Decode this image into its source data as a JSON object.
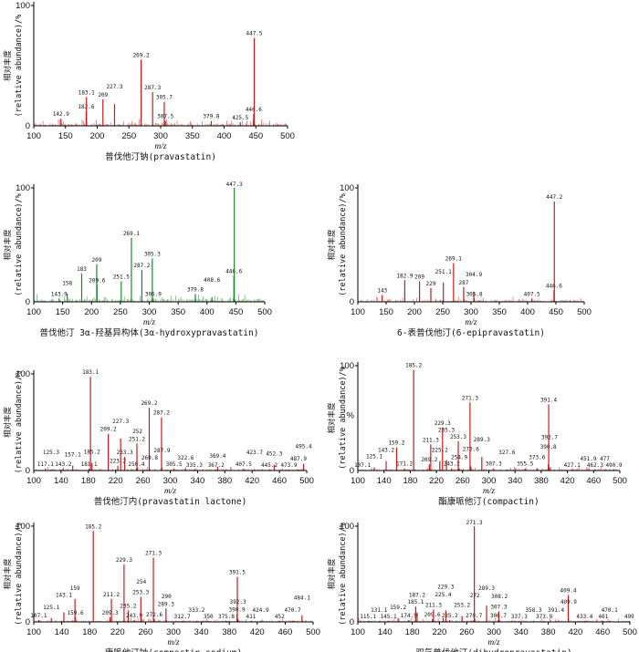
{
  "figure": {
    "y_axis_label_cn": "相对丰度",
    "y_axis_label_en": "(relative abundance)/%",
    "x_axis_label": "m/z",
    "y_max_label": "100",
    "y_zero_label": "0",
    "colors": {
      "red": "#d01818",
      "green": "#1a8a2a",
      "axis": "#000000"
    }
  },
  "chart_data": [
    {
      "type": "bar",
      "id": "pravastatin",
      "color": "red",
      "title": "普伐他汀钠(pravastatin)",
      "xlim": [
        100,
        500
      ],
      "xticks": [
        100,
        150,
        200,
        250,
        300,
        350,
        400,
        450,
        500
      ],
      "ylim": [
        0,
        100
      ],
      "ymax_label": "100",
      "ytick_extra": null,
      "noise": 0.5,
      "peaks": [
        {
          "mz": 142.9,
          "i": 6,
          "label": "142.9"
        },
        {
          "mz": 182.6,
          "i": 12,
          "label": "182.6"
        },
        {
          "mz": 183.1,
          "i": 24,
          "label": "183.1"
        },
        {
          "mz": 209,
          "i": 22,
          "label": "209"
        },
        {
          "mz": 227.3,
          "i": 18,
          "label": "227.3"
        },
        {
          "mz": 269.2,
          "i": 55,
          "label": "269.2"
        },
        {
          "mz": 287.3,
          "i": 28,
          "label": "287.3"
        },
        {
          "mz": 305.7,
          "i": 20,
          "label": "305.7"
        },
        {
          "mz": 307.5,
          "i": 4,
          "label": "307.5"
        },
        {
          "mz": 379.8,
          "i": 4,
          "label": "379.8"
        },
        {
          "mz": 425.5,
          "i": 3,
          "label": "425.5"
        },
        {
          "mz": 446.6,
          "i": 10,
          "label": "446.6"
        },
        {
          "mz": 447.5,
          "i": 73,
          "label": "447.5"
        }
      ]
    },
    {
      "type": "bar",
      "id": "hydroxy",
      "color": "green",
      "title": "普伐他汀 3α-羟基异构体(3α-hydroxypravastatin)",
      "xlim": [
        100,
        500
      ],
      "xticks": [
        100,
        150,
        200,
        250,
        300,
        350,
        400,
        450,
        500
      ],
      "ylim": [
        0,
        100
      ],
      "ymax_label": "100",
      "ytick_extra": null,
      "noise": 0.6,
      "peaks": [
        {
          "mz": 143.9,
          "i": 3,
          "label": "143.9"
        },
        {
          "mz": 158,
          "i": 7,
          "label": "158"
        },
        {
          "mz": 183,
          "i": 25,
          "label": "183"
        },
        {
          "mz": 209,
          "i": 33,
          "label": "209"
        },
        {
          "mz": 209.6,
          "i": 15,
          "label": "209.6"
        },
        {
          "mz": 251.5,
          "i": 18,
          "label": "251.5"
        },
        {
          "mz": 269.1,
          "i": 56,
          "label": "269.1"
        },
        {
          "mz": 287.2,
          "i": 28,
          "label": "287.2"
        },
        {
          "mz": 305.3,
          "i": 38,
          "label": "305.3"
        },
        {
          "mz": 306.9,
          "i": 3,
          "label": "306.9"
        },
        {
          "mz": 379.8,
          "i": 7,
          "label": "379.8"
        },
        {
          "mz": 408.6,
          "i": 4,
          "label": "408.6"
        },
        {
          "mz": 446.6,
          "i": 23,
          "label": "446.6"
        },
        {
          "mz": 447.3,
          "i": 100,
          "label": "447.3"
        }
      ]
    },
    {
      "type": "bar",
      "id": "epi",
      "color": "red",
      "title": "6-表普伐他汀(6-epipravastatin)",
      "xlim": [
        100,
        500
      ],
      "xticks": [
        100,
        150,
        200,
        250,
        300,
        350,
        400,
        450,
        500
      ],
      "ylim": [
        0,
        100
      ],
      "ymax_label": "100",
      "ytick_extra": null,
      "noise": 0.4,
      "peaks": [
        {
          "mz": 143,
          "i": 6,
          "label": "143"
        },
        {
          "mz": 182.9,
          "i": 19,
          "label": "182.9"
        },
        {
          "mz": 209,
          "i": 18,
          "label": "209"
        },
        {
          "mz": 229,
          "i": 12,
          "label": "229"
        },
        {
          "mz": 251.1,
          "i": 17,
          "label": "251.1"
        },
        {
          "mz": 269.1,
          "i": 34,
          "label": "269.1"
        },
        {
          "mz": 287,
          "i": 13,
          "label": "287"
        },
        {
          "mz": 304.9,
          "i": 9,
          "label": "304.9"
        },
        {
          "mz": 305.8,
          "i": 3,
          "label": "305.8"
        },
        {
          "mz": 407.5,
          "i": 3,
          "label": "407.5"
        },
        {
          "mz": 446.6,
          "i": 10,
          "label": "446.6"
        },
        {
          "mz": 447.2,
          "i": 88,
          "label": "447.2"
        }
      ]
    },
    {
      "type": "bar",
      "id": "lactone",
      "color": "red",
      "title": "普伐他汀内(pravastatin lactone)",
      "xlim": [
        100,
        500
      ],
      "xticks": [
        100,
        140,
        180,
        220,
        260,
        300,
        340,
        380,
        420,
        460,
        500
      ],
      "ylim": [
        0,
        100
      ],
      "ymax_label": "100",
      "ytick_extra": null,
      "noise": 0.3,
      "peaks": [
        {
          "mz": 117.1,
          "i": 2,
          "label": "117.1"
        },
        {
          "mz": 125.3,
          "i": 1,
          "label": "125.3"
        },
        {
          "mz": 143.2,
          "i": 2,
          "label": "143.2"
        },
        {
          "mz": 157.1,
          "i": 5,
          "label": "157.1"
        },
        {
          "mz": 181.1,
          "i": 2,
          "label": "181.1"
        },
        {
          "mz": 183.1,
          "i": 97,
          "label": "183.1"
        },
        {
          "mz": 185.2,
          "i": 8,
          "label": "185.2"
        },
        {
          "mz": 209.2,
          "i": 38,
          "label": "209.2"
        },
        {
          "mz": 223.2,
          "i": 5,
          "label": "223.2"
        },
        {
          "mz": 227.3,
          "i": 33,
          "label": "227.3"
        },
        {
          "mz": 233.3,
          "i": 14,
          "label": "233.3"
        },
        {
          "mz": 250.4,
          "i": 2,
          "label": "250.4"
        },
        {
          "mz": 251.2,
          "i": 28,
          "label": "251.2"
        },
        {
          "mz": 252,
          "i": 3,
          "label": "252"
        },
        {
          "mz": 269.2,
          "i": 65,
          "label": "269.2"
        },
        {
          "mz": 269.8,
          "i": 2,
          "label": "269.8"
        },
        {
          "mz": 287.2,
          "i": 55,
          "label": "287.2"
        },
        {
          "mz": 287.9,
          "i": 3,
          "label": "287.9"
        },
        {
          "mz": 305.5,
          "i": 2,
          "label": "305.5"
        },
        {
          "mz": 322.6,
          "i": 2,
          "label": "322.6"
        },
        {
          "mz": 335.3,
          "i": 1,
          "label": "335.3"
        },
        {
          "mz": 367.2,
          "i": 1,
          "label": "367.2"
        },
        {
          "mz": 369.4,
          "i": 4,
          "label": "369.4"
        },
        {
          "mz": 407.5,
          "i": 2,
          "label": "407.5"
        },
        {
          "mz": 423.7,
          "i": 1,
          "label": "423.7"
        },
        {
          "mz": 445.2,
          "i": 1,
          "label": "445.2"
        },
        {
          "mz": 452.3,
          "i": 6,
          "label": "452.3"
        },
        {
          "mz": 473.9,
          "i": 1,
          "label": "473.9"
        },
        {
          "mz": 487.9,
          "i": 1,
          "label": "487.9"
        },
        {
          "mz": 495.4,
          "i": 7,
          "label": "495.4"
        }
      ]
    },
    {
      "type": "bar",
      "id": "compactin",
      "color": "red",
      "title": "酯康哌他汀(compactin)",
      "xlim": [
        100,
        500
      ],
      "xticks": [
        100,
        140,
        180,
        220,
        260,
        300,
        340,
        380,
        420,
        460,
        500
      ],
      "ylim": [
        0,
        100
      ],
      "ymax_label": "100",
      "ytick_extra": "%",
      "noise": 0.3,
      "peaks": [
        {
          "mz": 107.1,
          "i": 1,
          "label": "107.1"
        },
        {
          "mz": 125.1,
          "i": 3,
          "label": "125.1"
        },
        {
          "mz": 143.2,
          "i": 9,
          "label": "143.2"
        },
        {
          "mz": 159.2,
          "i": 22,
          "label": "159.2"
        },
        {
          "mz": 171.2,
          "i": 2,
          "label": "171.2"
        },
        {
          "mz": 185.2,
          "i": 96,
          "label": "185.2"
        },
        {
          "mz": 209.2,
          "i": 6,
          "label": "209.2"
        },
        {
          "mz": 211.3,
          "i": 25,
          "label": "211.3"
        },
        {
          "mz": 225.2,
          "i": 9,
          "label": "225.2"
        },
        {
          "mz": 229.3,
          "i": 41,
          "label": "229.3"
        },
        {
          "mz": 235.3,
          "i": 10,
          "label": "235.3"
        },
        {
          "mz": 243.2,
          "i": 2,
          "label": "243.2"
        },
        {
          "mz": 253.3,
          "i": 28,
          "label": "253.3"
        },
        {
          "mz": 254.9,
          "i": 2,
          "label": "254.9"
        },
        {
          "mz": 271.3,
          "i": 65,
          "label": "271.3"
        },
        {
          "mz": 272.6,
          "i": 4,
          "label": "272.6"
        },
        {
          "mz": 289.3,
          "i": 13,
          "label": "289.3"
        },
        {
          "mz": 307.3,
          "i": 2,
          "label": "307.3"
        },
        {
          "mz": 327.6,
          "i": 1,
          "label": "327.6"
        },
        {
          "mz": 355.5,
          "i": 2,
          "label": "355.5"
        },
        {
          "mz": 373.6,
          "i": 2,
          "label": "373.6"
        },
        {
          "mz": 390.8,
          "i": 6,
          "label": "390.8"
        },
        {
          "mz": 391.4,
          "i": 63,
          "label": "391.4"
        },
        {
          "mz": 392.7,
          "i": 3,
          "label": "392.7"
        },
        {
          "mz": 427.1,
          "i": 1,
          "label": "427.1"
        },
        {
          "mz": 451.9,
          "i": 1,
          "label": "451.9"
        },
        {
          "mz": 462.3,
          "i": 1,
          "label": "462.3"
        },
        {
          "mz": 477,
          "i": 1,
          "label": "477"
        },
        {
          "mz": 490.9,
          "i": 1,
          "label": "490.9"
        }
      ]
    },
    {
      "type": "bar",
      "id": "compactin_sodium",
      "color": "red",
      "title": "康哌他汀钠(compactin sodium)",
      "xlim": [
        100,
        500
      ],
      "xticks": [
        100,
        140,
        180,
        220,
        260,
        300,
        340,
        380,
        420,
        460,
        500
      ],
      "ylim": [
        0,
        100
      ],
      "ymax_label": "100",
      "ytick_extra": null,
      "noise": 0.3,
      "peaks": [
        {
          "mz": 107.1,
          "i": 2,
          "label": "107.1"
        },
        {
          "mz": 125.1,
          "i": 4,
          "label": "125.1"
        },
        {
          "mz": 143.1,
          "i": 10,
          "label": "143.1"
        },
        {
          "mz": 159,
          "i": 24,
          "label": "159"
        },
        {
          "mz": 159.6,
          "i": 5,
          "label": "159.6"
        },
        {
          "mz": 185.2,
          "i": 95,
          "label": "185.2"
        },
        {
          "mz": 209.3,
          "i": 5,
          "label": "209.3"
        },
        {
          "mz": 211.2,
          "i": 24,
          "label": "211.2"
        },
        {
          "mz": 229.3,
          "i": 60,
          "label": "229.3"
        },
        {
          "mz": 235.2,
          "i": 12,
          "label": "235.2"
        },
        {
          "mz": 243.9,
          "i": 2,
          "label": "243.9"
        },
        {
          "mz": 253.3,
          "i": 26,
          "label": "253.3"
        },
        {
          "mz": 254,
          "i": 4,
          "label": "254"
        },
        {
          "mz": 271.3,
          "i": 67,
          "label": "271.3"
        },
        {
          "mz": 272.6,
          "i": 3,
          "label": "272.6"
        },
        {
          "mz": 289.3,
          "i": 14,
          "label": "289.3"
        },
        {
          "mz": 290,
          "i": 2,
          "label": "290"
        },
        {
          "mz": 312.7,
          "i": 1,
          "label": "312.7"
        },
        {
          "mz": 333.2,
          "i": 1,
          "label": "333.2"
        },
        {
          "mz": 350,
          "i": 1,
          "label": "350"
        },
        {
          "mz": 375.8,
          "i": 1,
          "label": "375.8"
        },
        {
          "mz": 390.9,
          "i": 8,
          "label": "390.9"
        },
        {
          "mz": 391.5,
          "i": 47,
          "label": "391.5"
        },
        {
          "mz": 392.3,
          "i": 3,
          "label": "392.3"
        },
        {
          "mz": 411,
          "i": 1,
          "label": "411"
        },
        {
          "mz": 424.9,
          "i": 1,
          "label": "424.9"
        },
        {
          "mz": 452,
          "i": 1,
          "label": "452"
        },
        {
          "mz": 470.7,
          "i": 1,
          "label": "470.7"
        },
        {
          "mz": 484.1,
          "i": 7,
          "label": "484.1"
        }
      ]
    },
    {
      "type": "bar",
      "id": "dihydro",
      "color": "red",
      "title": "双氢普伐他汀(dihydropravastatin)",
      "xlim": [
        100,
        500
      ],
      "xticks": [
        100,
        140,
        180,
        220,
        260,
        300,
        340,
        380,
        420,
        460,
        500
      ],
      "ylim": [
        0,
        100
      ],
      "ymax_label": "100",
      "ytick_extra": null,
      "noise": 0.3,
      "peaks": [
        {
          "mz": 115.1,
          "i": 1,
          "label": "115.1"
        },
        {
          "mz": 131.1,
          "i": 1,
          "label": "131.1"
        },
        {
          "mz": 145.1,
          "i": 1,
          "label": "145.1"
        },
        {
          "mz": 159.2,
          "i": 4,
          "label": "159.2"
        },
        {
          "mz": 174.9,
          "i": 2,
          "label": "174.9"
        },
        {
          "mz": 185.1,
          "i": 16,
          "label": "185.1"
        },
        {
          "mz": 187.2,
          "i": 10,
          "label": "187.2"
        },
        {
          "mz": 209.6,
          "i": 3,
          "label": "209.6"
        },
        {
          "mz": 211.3,
          "i": 13,
          "label": "211.3"
        },
        {
          "mz": 225.4,
          "i": 4,
          "label": "225.4"
        },
        {
          "mz": 229.3,
          "i": 12,
          "label": "229.3"
        },
        {
          "mz": 235.2,
          "i": 2,
          "label": "235.2"
        },
        {
          "mz": 253.2,
          "i": 6,
          "label": "253.2"
        },
        {
          "mz": 270.7,
          "i": 2,
          "label": "270.7"
        },
        {
          "mz": 271.3,
          "i": 100,
          "label": "271.3"
        },
        {
          "mz": 272,
          "i": 3,
          "label": "272"
        },
        {
          "mz": 289.3,
          "i": 17,
          "label": "289.3"
        },
        {
          "mz": 306.7,
          "i": 2,
          "label": "306.7"
        },
        {
          "mz": 307.3,
          "i": 11,
          "label": "307.3"
        },
        {
          "mz": 308.2,
          "i": 2,
          "label": "308.2"
        },
        {
          "mz": 337.3,
          "i": 1,
          "label": "337.3"
        },
        {
          "mz": 358.3,
          "i": 1,
          "label": "358.3"
        },
        {
          "mz": 373.9,
          "i": 1,
          "label": "373.9"
        },
        {
          "mz": 391.4,
          "i": 1,
          "label": "391.4"
        },
        {
          "mz": 409.4,
          "i": 28,
          "label": "409.4"
        },
        {
          "mz": 409.9,
          "i": 3,
          "label": "409.9"
        },
        {
          "mz": 433.4,
          "i": 1,
          "label": "433.4"
        },
        {
          "mz": 461,
          "i": 1,
          "label": "461"
        },
        {
          "mz": 470.1,
          "i": 1,
          "label": "470.1"
        },
        {
          "mz": 499,
          "i": 1,
          "label": "499"
        }
      ]
    }
  ]
}
